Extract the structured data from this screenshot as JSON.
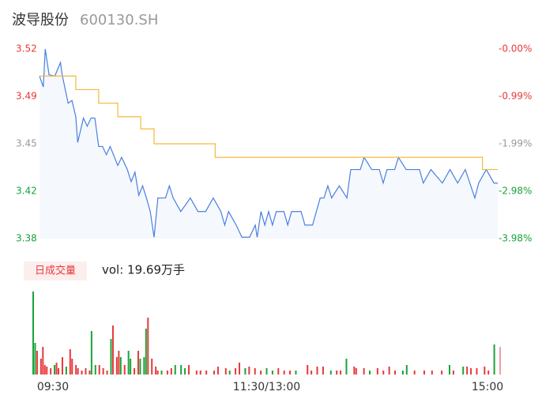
{
  "header": {
    "title": "波导股份",
    "code": "600130.SH"
  },
  "chart_data": [
    {
      "type": "line",
      "xlim": [
        0,
        240
      ],
      "ylim": [
        3.38,
        3.52
      ],
      "yticks": [
        3.52,
        {
          "value": 3.485,
          "label": "3.49"
        },
        3.45,
        {
          "value": 3.415,
          "label": "3.42"
        },
        3.38
      ],
      "y2lim": [
        -3.98,
        0
      ],
      "y2ticks": [
        {
          "value": 0,
          "label": "-0.00%"
        },
        {
          "value": -0.995,
          "label": "-0.99%"
        },
        {
          "value": -1.99,
          "label": "-1.99%"
        },
        {
          "value": -2.985,
          "label": "-2.98%"
        },
        {
          "value": -3.98,
          "label": "-3.98%"
        }
      ],
      "tick_colors": [
        "#e8393a",
        "#e8393a",
        "#999999",
        "#1aa33a",
        "#1aa33a"
      ],
      "series": [
        {
          "color": "#4a7fe0",
          "fill": "#f5f8fd",
          "x": [
            0,
            2,
            3,
            5,
            8,
            11,
            12,
            15,
            17,
            19,
            20,
            23,
            25,
            27,
            29,
            31,
            33,
            35,
            37,
            41,
            43,
            46,
            48,
            50,
            52,
            54,
            56,
            58,
            60,
            62,
            66,
            68,
            70,
            74,
            79,
            83,
            87,
            91,
            95,
            97,
            99,
            103,
            106,
            110,
            113,
            114,
            116,
            118,
            120,
            122,
            124,
            128,
            130,
            132,
            137,
            139,
            143,
            145,
            147,
            149,
            151,
            153,
            157,
            161,
            163,
            168,
            170,
            174,
            178,
            180,
            182,
            186,
            188,
            192,
            199,
            201,
            205,
            211,
            215,
            219,
            223,
            228,
            230,
            234,
            238,
            240
          ],
          "values": [
            3.5,
            3.492,
            3.52,
            3.501,
            3.5,
            3.51,
            3.5,
            3.48,
            3.482,
            3.47,
            3.451,
            3.469,
            3.463,
            3.469,
            3.469,
            3.448,
            3.448,
            3.442,
            3.448,
            3.434,
            3.44,
            3.431,
            3.422,
            3.429,
            3.412,
            3.419,
            3.41,
            3.4,
            3.381,
            3.41,
            3.41,
            3.419,
            3.41,
            3.4,
            3.41,
            3.4,
            3.4,
            3.41,
            3.4,
            3.39,
            3.4,
            3.39,
            3.381,
            3.381,
            3.39,
            3.381,
            3.4,
            3.39,
            3.4,
            3.39,
            3.4,
            3.4,
            3.39,
            3.4,
            3.4,
            3.39,
            3.39,
            3.4,
            3.41,
            3.41,
            3.419,
            3.41,
            3.419,
            3.41,
            3.431,
            3.431,
            3.44,
            3.431,
            3.431,
            3.421,
            3.431,
            3.431,
            3.44,
            3.431,
            3.431,
            3.421,
            3.431,
            3.421,
            3.431,
            3.421,
            3.431,
            3.41,
            3.421,
            3.431,
            3.421,
            3.421
          ]
        },
        {
          "color": "#f5b93a",
          "x": [
            0,
            19,
            19,
            31,
            31,
            41,
            41,
            53,
            53,
            60,
            60,
            92,
            92,
            232,
            232,
            240
          ],
          "values": [
            3.5,
            3.5,
            3.49,
            3.49,
            3.48,
            3.48,
            3.47,
            3.47,
            3.461,
            3.461,
            3.45,
            3.45,
            3.44,
            3.44,
            3.431,
            3.431
          ]
        }
      ]
    },
    {
      "type": "bar",
      "label": "日成交量",
      "summary": "vol: 19.69万手",
      "xlim": [
        0,
        240
      ],
      "ylim": [
        0,
        105
      ],
      "xticks": [
        {
          "value": 0,
          "label": "09:30"
        },
        {
          "value": 120,
          "label": "11:30/13:00"
        },
        {
          "value": 240,
          "label": "15:00"
        }
      ],
      "x": [
        0,
        1,
        2,
        4,
        5,
        6,
        7,
        9,
        11,
        12,
        13,
        15,
        17,
        19,
        20,
        22,
        23,
        25,
        27,
        29,
        30,
        32,
        34,
        36,
        38,
        40,
        41,
        43,
        44,
        45,
        47,
        49,
        50,
        52,
        54,
        55,
        57,
        58,
        59,
        61,
        63,
        64,
        66,
        69,
        71,
        73,
        76,
        78,
        80,
        84,
        86,
        89,
        93,
        95,
        99,
        101,
        104,
        106,
        109,
        111,
        114,
        117,
        120,
        123,
        126,
        129,
        132,
        135,
        141,
        143,
        146,
        149,
        153,
        156,
        158,
        161,
        165,
        166,
        170,
        173,
        177,
        180,
        183,
        186,
        190,
        192,
        196,
        201,
        205,
        210,
        214,
        216,
        221,
        223,
        225,
        228,
        232,
        234,
        237,
        240
      ],
      "values": [
        105,
        40,
        30,
        20,
        35,
        12,
        10,
        8,
        12,
        15,
        8,
        22,
        10,
        32,
        20,
        12,
        8,
        5,
        8,
        5,
        55,
        12,
        12,
        8,
        5,
        45,
        62,
        22,
        30,
        22,
        12,
        30,
        20,
        8,
        30,
        20,
        22,
        58,
        72,
        20,
        10,
        5,
        5,
        5,
        8,
        12,
        12,
        8,
        12,
        5,
        5,
        5,
        5,
        10,
        8,
        5,
        8,
        15,
        8,
        10,
        8,
        5,
        8,
        5,
        8,
        5,
        5,
        5,
        12,
        5,
        10,
        10,
        5,
        5,
        5,
        20,
        10,
        8,
        8,
        5,
        8,
        5,
        10,
        5,
        5,
        12,
        5,
        5,
        5,
        5,
        12,
        5,
        10,
        10,
        8,
        8,
        10,
        5,
        38,
        35
      ],
      "colors": [
        "#1aa33a",
        "#1aa33a",
        "#e8393a",
        "#e8393a",
        "#e8393a",
        "#e8393a",
        "#e8393a",
        "#e8393a",
        "#1aa33a",
        "#e8393a",
        "#e8393a",
        "#e8393a",
        "#1aa33a",
        "#e8393a",
        "#e8393a",
        "#e8393a",
        "#e8393a",
        "#e8393a",
        "#e8393a",
        "#e8393a",
        "#1aa33a",
        "#1aa33a",
        "#e8393a",
        "#e8393a",
        "#e8393a",
        "#1aa33a",
        "#e8393a",
        "#e8393a",
        "#e8393a",
        "#1aa33a",
        "#e8393a",
        "#1aa33a",
        "#1aa33a",
        "#e8393a",
        "#e8393a",
        "#1aa33a",
        "#1aa33a",
        "#1aa33a",
        "#e8393a",
        "#e8393a",
        "#e8393a",
        "#e8393a",
        "#1aa33a",
        "#e8393a",
        "#e8393a",
        "#1aa33a",
        "#1aa33a",
        "#1aa33a",
        "#e8393a",
        "#e8393a",
        "#e8393a",
        "#e8393a",
        "#e8393a",
        "#e8393a",
        "#e8393a",
        "#1aa33a",
        "#e8393a",
        "#e8393a",
        "#1aa33a",
        "#e8393a",
        "#e8393a",
        "#e8393a",
        "#1aa33a",
        "#1aa33a",
        "#e8393a",
        "#e8393a",
        "#e8393a",
        "#1aa33a",
        "#e8393a",
        "#e8393a",
        "#e8393a",
        "#e8393a",
        "#1aa33a",
        "#e8393a",
        "#e8393a",
        "#1aa33a",
        "#e8393a",
        "#e8393a",
        "#e8393a",
        "#1aa33a",
        "#e8393a",
        "#e8393a",
        "#e8393a",
        "#e8393a",
        "#1aa33a",
        "#1aa33a",
        "#e8393a",
        "#e8393a",
        "#e8393a",
        "#e8393a",
        "#1aa33a",
        "#e8393a",
        "#1aa33a",
        "#e8393a",
        "#e8393a",
        "#e8393a",
        "#e8393a",
        "#e8393a",
        "#1aa33a",
        "#f0a0a0"
      ]
    }
  ]
}
